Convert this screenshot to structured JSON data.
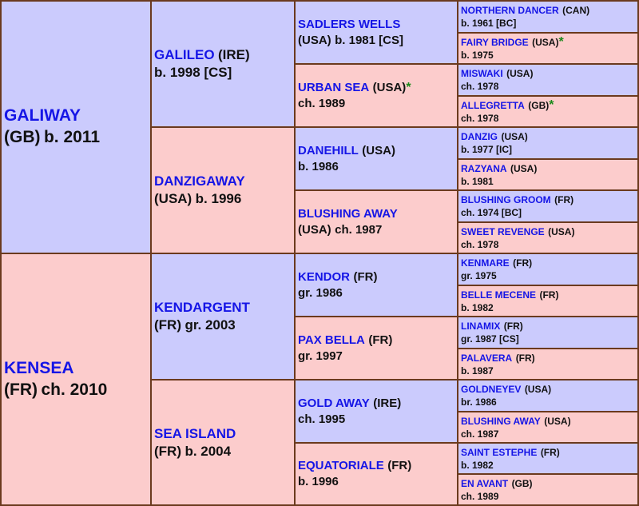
{
  "colors": {
    "male_bg": "#cbcbfd",
    "female_bg": "#fccccc",
    "name_text": "#1515e6",
    "border": "#6b3a1e",
    "star": "#1a8a1a"
  },
  "pedigree": {
    "sire": {
      "name": "GALIWAY",
      "origin": "(GB)",
      "details": "b. 2011",
      "star": "",
      "sire": {
        "name": "GALILEO",
        "origin": "(IRE)",
        "details": "b. 1998 [CS]",
        "star": "",
        "sire": {
          "name": "SADLERS WELLS",
          "origin": "(USA)",
          "details": "b. 1981 [CS]",
          "star": "",
          "sire": {
            "name": "NORTHERN DANCER",
            "origin": "(CAN)",
            "details": "b. 1961 [BC]",
            "star": ""
          },
          "dam": {
            "name": "FAIRY BRIDGE",
            "origin": "(USA)",
            "details": "b. 1975",
            "star": "*"
          }
        },
        "dam": {
          "name": "URBAN SEA",
          "origin": "(USA)",
          "details": "ch. 1989",
          "star": "*",
          "sire": {
            "name": "MISWAKI",
            "origin": "(USA)",
            "details": "ch. 1978",
            "star": ""
          },
          "dam": {
            "name": "ALLEGRETTA",
            "origin": "(GB)",
            "details": "ch. 1978",
            "star": "*"
          }
        }
      },
      "dam": {
        "name": "DANZIGAWAY",
        "origin": "(USA)",
        "details": "b. 1996",
        "star": "",
        "sire": {
          "name": "DANEHILL",
          "origin": "(USA)",
          "details": "b. 1986",
          "star": "",
          "sire": {
            "name": "DANZIG",
            "origin": "(USA)",
            "details": "b. 1977 [IC]",
            "star": ""
          },
          "dam": {
            "name": "RAZYANA",
            "origin": "(USA)",
            "details": "b. 1981",
            "star": ""
          }
        },
        "dam": {
          "name": "BLUSHING AWAY",
          "origin": "(USA)",
          "details": "ch. 1987",
          "star": "",
          "sire": {
            "name": "BLUSHING GROOM",
            "origin": "(FR)",
            "details": "ch. 1974 [BC]",
            "star": ""
          },
          "dam": {
            "name": "SWEET REVENGE",
            "origin": "(USA)",
            "details": "ch. 1978",
            "star": ""
          }
        }
      }
    },
    "dam": {
      "name": "KENSEA",
      "origin": "(FR)",
      "details": "ch. 2010",
      "star": "",
      "sire": {
        "name": "KENDARGENT",
        "origin": "(FR)",
        "details": "gr. 2003",
        "star": "",
        "sire": {
          "name": "KENDOR",
          "origin": "(FR)",
          "details": "gr. 1986",
          "star": "",
          "sire": {
            "name": "KENMARE",
            "origin": "(FR)",
            "details": "gr. 1975",
            "star": ""
          },
          "dam": {
            "name": "BELLE MECENE",
            "origin": "(FR)",
            "details": "b. 1982",
            "star": ""
          }
        },
        "dam": {
          "name": "PAX BELLA",
          "origin": "(FR)",
          "details": "gr. 1997",
          "star": "",
          "sire": {
            "name": "LINAMIX",
            "origin": "(FR)",
            "details": "gr. 1987 [CS]",
            "star": ""
          },
          "dam": {
            "name": "PALAVERA",
            "origin": "(FR)",
            "details": "b. 1987",
            "star": ""
          }
        }
      },
      "dam": {
        "name": "SEA ISLAND",
        "origin": "(FR)",
        "details": "b. 2004",
        "star": "",
        "sire": {
          "name": "GOLD AWAY",
          "origin": "(IRE)",
          "details": "ch. 1995",
          "star": "",
          "sire": {
            "name": "GOLDNEYEV",
            "origin": "(USA)",
            "details": "br. 1986",
            "star": ""
          },
          "dam": {
            "name": "BLUSHING AWAY",
            "origin": "(USA)",
            "details": "ch. 1987",
            "star": ""
          }
        },
        "dam": {
          "name": "EQUATORIALE",
          "origin": "(FR)",
          "details": "b. 1996",
          "star": "",
          "sire": {
            "name": "SAINT ESTEPHE",
            "origin": "(FR)",
            "details": "b. 1982",
            "star": ""
          },
          "dam": {
            "name": "EN AVANT",
            "origin": "(GB)",
            "details": "ch. 1989",
            "star": ""
          }
        }
      }
    }
  }
}
